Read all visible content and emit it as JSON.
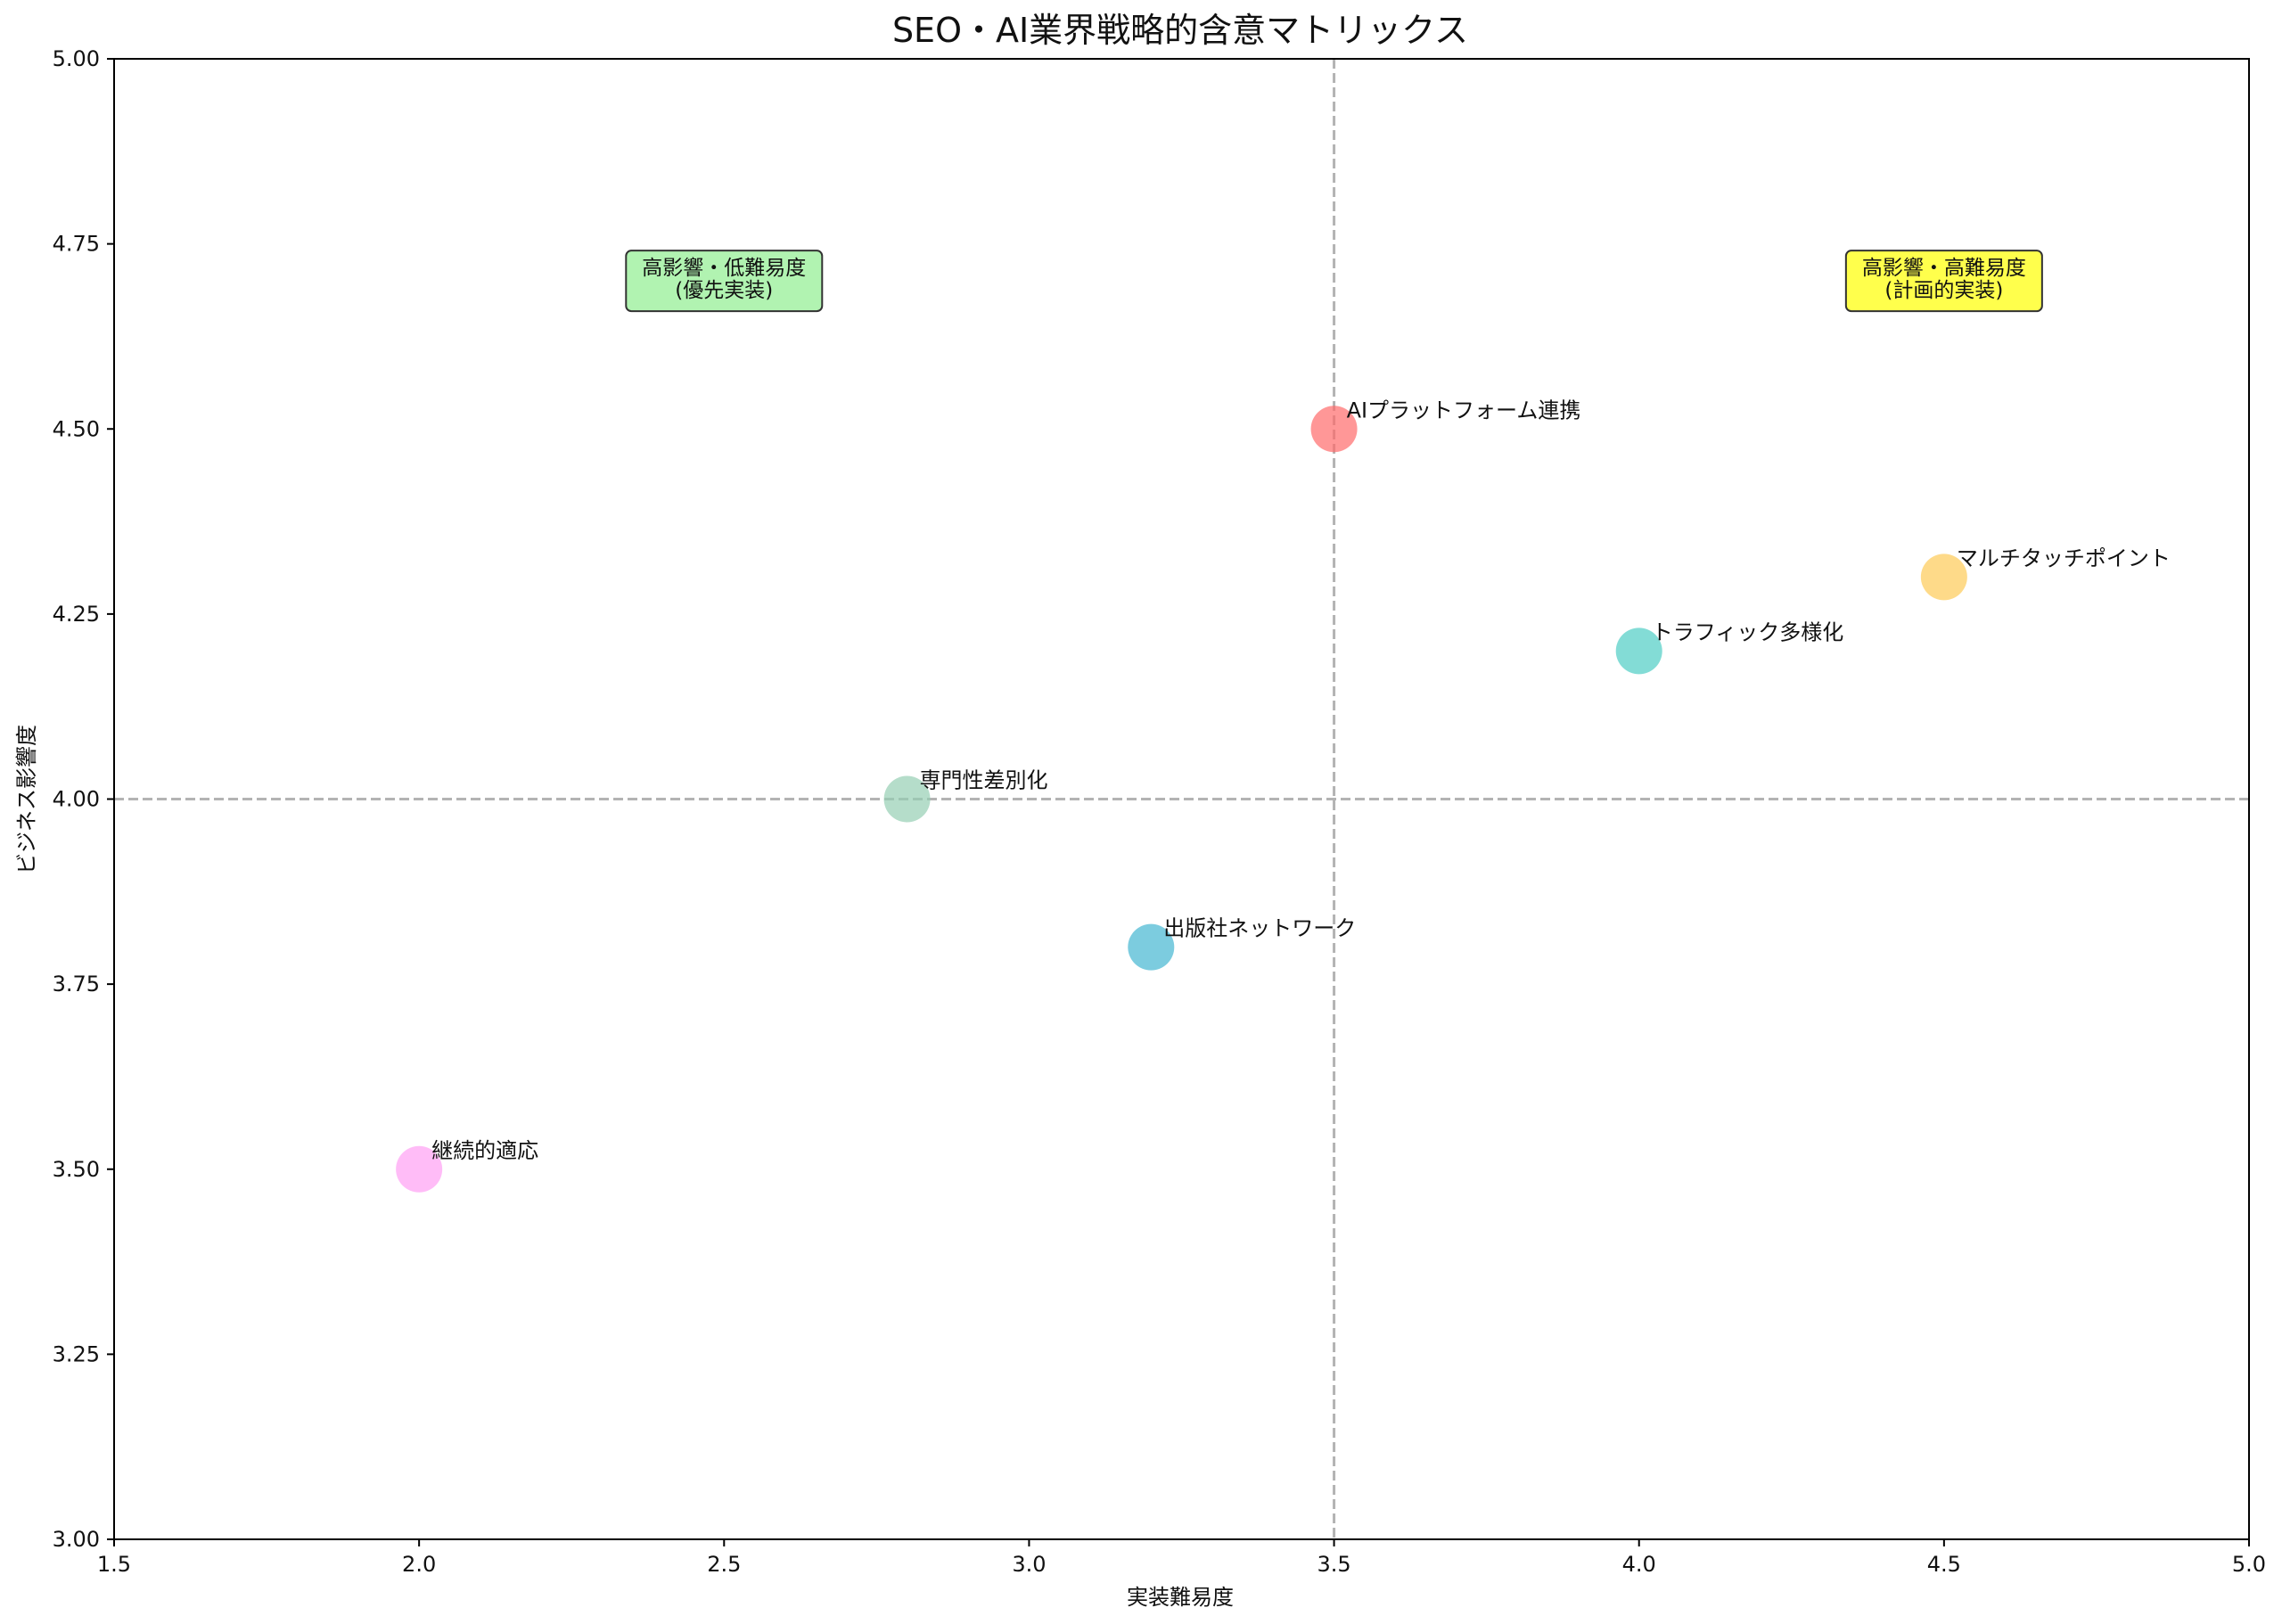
{
  "chart_data": {
    "type": "scatter",
    "title": "SEO・AI業界戦略的含意マトリックス",
    "xlabel": "実装難易度",
    "ylabel": "ビジネス影響度",
    "xlim": [
      1.5,
      5.0
    ],
    "ylim": [
      3.0,
      5.0
    ],
    "xticks": [
      "1.5",
      "2.0",
      "2.5",
      "3.0",
      "3.5",
      "4.0",
      "4.5",
      "5.0"
    ],
    "yticks": [
      "3.00",
      "3.25",
      "3.50",
      "3.75",
      "4.00",
      "4.25",
      "4.50",
      "4.75",
      "5.00"
    ],
    "grid": false,
    "reference_lines": {
      "x": 3.5,
      "y": 4.0
    },
    "points": [
      {
        "label": "AIプラットフォーム連携",
        "x": 3.5,
        "y": 4.5,
        "color": "#ff6b6b"
      },
      {
        "label": "トラフィック多様化",
        "x": 4.0,
        "y": 4.2,
        "color": "#4ecdc4"
      },
      {
        "label": "出版社ネットワーク",
        "x": 3.2,
        "y": 3.8,
        "color": "#45b7d1"
      },
      {
        "label": "専門性差別化",
        "x": 2.8,
        "y": 4.0,
        "color": "#96ceb4"
      },
      {
        "label": "マルチタッチポイント",
        "x": 4.5,
        "y": 4.3,
        "color": "#feca57"
      },
      {
        "label": "継続的適応",
        "x": 2.0,
        "y": 3.5,
        "color": "#ff9ff3"
      }
    ],
    "annotations": [
      {
        "lines": [
          "高影響・低難易度",
          "(優先実装)"
        ],
        "x": 2.5,
        "y": 4.7,
        "color": "#90ee90"
      },
      {
        "lines": [
          "高影響・高難易度",
          "(計画的実装)"
        ],
        "x": 4.5,
        "y": 4.7,
        "color": "#ffff00"
      }
    ]
  }
}
